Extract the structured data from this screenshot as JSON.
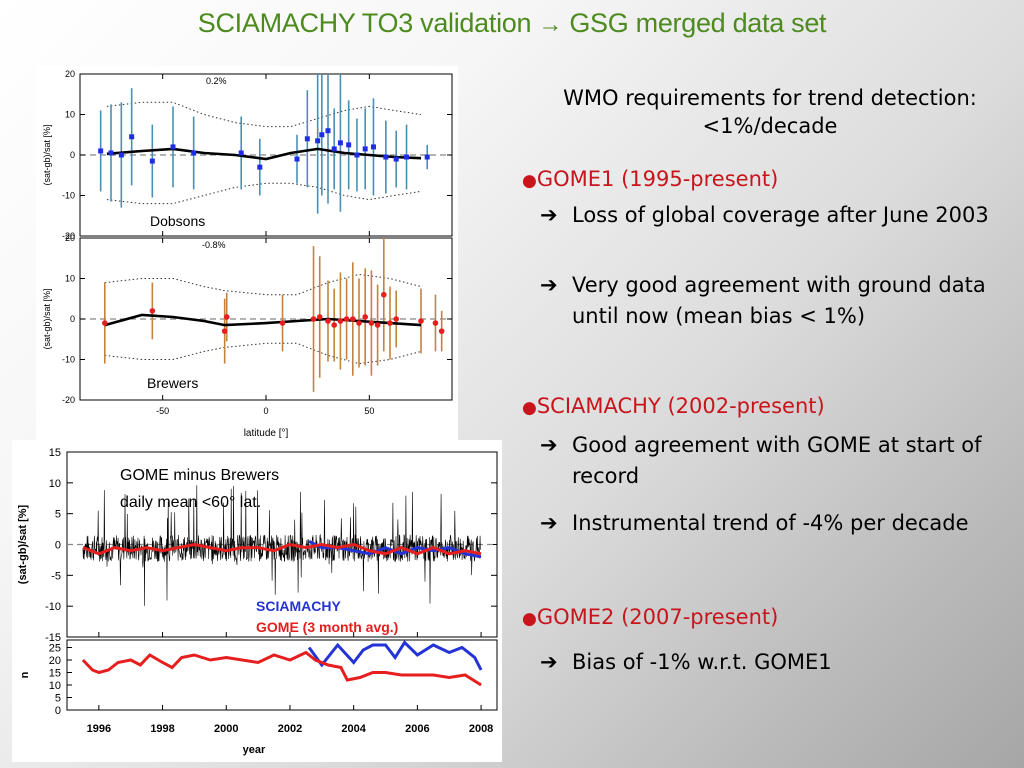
{
  "title": "SCIAMACHY TO3 validation",
  "title_arrow": "→",
  "title_tail": "GSG merged data set",
  "right": {
    "requirement": "WMO requirements for trend detection: <1%/decade",
    "arrow_glyph": "➔",
    "bullet_glyph": "●",
    "sections": [
      {
        "heading": "GOME1 (1995-present)",
        "items": [
          "Loss of global coverage after June 2003",
          "Very good agreement with ground data until now (mean bias < 1%)"
        ]
      },
      {
        "heading": "SCIAMACHY (2002-present)",
        "items": [
          "Good agreement with GOME at start of record",
          "Instrumental trend of -4% per decade"
        ]
      },
      {
        "heading": "GOME2 (2007-present)",
        "items": [
          "Bias of -1% w.r.t. GOME1"
        ]
      }
    ]
  },
  "chart_data": [
    {
      "type": "scatter",
      "panel": "Dobsons",
      "annotation": "0.2%",
      "xlabel": "",
      "ylabel": "(sat-gb)/sat [%]",
      "xlim": [
        -90,
        90
      ],
      "ylim": [
        -20,
        20
      ],
      "xticks": [
        -50,
        0,
        50
      ],
      "yticks": [
        -20,
        -10,
        0,
        10,
        20
      ],
      "colors": {
        "points": "#1f2ee6",
        "errorbars": "#4a8fb5",
        "line": "#000000"
      },
      "points": [
        {
          "x": -80,
          "y": 1,
          "e": 10
        },
        {
          "x": -75,
          "y": 0.5,
          "e": 12
        },
        {
          "x": -70,
          "y": 0,
          "e": 13
        },
        {
          "x": -65,
          "y": 4.5,
          "e": 12
        },
        {
          "x": -55,
          "y": -1.5,
          "e": 9
        },
        {
          "x": -45,
          "y": 2,
          "e": 10
        },
        {
          "x": -35,
          "y": 0.5,
          "e": 9
        },
        {
          "x": -12,
          "y": 0.5,
          "e": 9
        },
        {
          "x": -3,
          "y": -3,
          "e": 7
        },
        {
          "x": 15,
          "y": -1,
          "e": 6
        },
        {
          "x": 20,
          "y": 4,
          "e": 12
        },
        {
          "x": 25,
          "y": 3.5,
          "e": 18
        },
        {
          "x": 27,
          "y": 5,
          "e": 15
        },
        {
          "x": 30,
          "y": 6,
          "e": 18
        },
        {
          "x": 33,
          "y": 1.5,
          "e": 10
        },
        {
          "x": 36,
          "y": 3,
          "e": 17
        },
        {
          "x": 40,
          "y": 2.5,
          "e": 11
        },
        {
          "x": 44,
          "y": 0,
          "e": 9
        },
        {
          "x": 48,
          "y": 1.5,
          "e": 10
        },
        {
          "x": 52,
          "y": 2,
          "e": 12
        },
        {
          "x": 58,
          "y": -0.5,
          "e": 9
        },
        {
          "x": 63,
          "y": -1,
          "e": 7
        },
        {
          "x": 68,
          "y": -0.5,
          "e": 8
        },
        {
          "x": 78,
          "y": -0.5,
          "e": 3
        }
      ],
      "mean_line": {
        "x": [
          -77,
          -60,
          -45,
          -30,
          -15,
          0,
          12,
          25,
          38,
          50,
          62,
          75
        ],
        "y": [
          0.3,
          1,
          1.5,
          0.5,
          0,
          -1,
          0.5,
          1.5,
          0.5,
          0,
          -0.5,
          -0.8
        ]
      },
      "envelope_upper": {
        "x": [
          -77,
          -60,
          -45,
          -30,
          -15,
          0,
          12,
          25,
          38,
          50,
          62,
          75
        ],
        "y": [
          12,
          13,
          13,
          10,
          8,
          7,
          7,
          9,
          11,
          12,
          11,
          10
        ]
      },
      "envelope_lower": {
        "x": [
          -77,
          -60,
          -45,
          -30,
          -15,
          0,
          12,
          25,
          38,
          50,
          62,
          75
        ],
        "y": [
          -11,
          -12,
          -12,
          -10,
          -8,
          -7,
          -7,
          -8,
          -10,
          -11,
          -10,
          -9
        ]
      }
    },
    {
      "type": "scatter",
      "panel": "Brewers",
      "annotation": "-0.8%",
      "xlabel": "latitude [°]",
      "ylabel": "(sat-gb)/sat [%]",
      "xlim": [
        -90,
        90
      ],
      "ylim": [
        -20,
        20
      ],
      "xticks": [
        -50,
        0,
        50
      ],
      "yticks": [
        -20,
        -10,
        0,
        10,
        20
      ],
      "colors": {
        "points": "#e61e1e",
        "errorbars": "#c4823d",
        "line": "#000000"
      },
      "points": [
        {
          "x": -78,
          "y": -1,
          "e": 10
        },
        {
          "x": -55,
          "y": 2,
          "e": 7
        },
        {
          "x": -20,
          "y": -3,
          "e": 8
        },
        {
          "x": -19,
          "y": 0.5,
          "e": 6
        },
        {
          "x": 8,
          "y": -1,
          "e": 7
        },
        {
          "x": 23,
          "y": 0,
          "e": 18
        },
        {
          "x": 26,
          "y": 0.5,
          "e": 15
        },
        {
          "x": 30,
          "y": -0.5,
          "e": 10
        },
        {
          "x": 33,
          "y": -1.5,
          "e": 9
        },
        {
          "x": 36,
          "y": -0.5,
          "e": 12
        },
        {
          "x": 39,
          "y": 0,
          "e": 10
        },
        {
          "x": 42,
          "y": 0,
          "e": 14
        },
        {
          "x": 45,
          "y": -1,
          "e": 11
        },
        {
          "x": 48,
          "y": 0.5,
          "e": 12
        },
        {
          "x": 51,
          "y": -1,
          "e": 13
        },
        {
          "x": 54,
          "y": -1.5,
          "e": 10
        },
        {
          "x": 57,
          "y": 6,
          "e": 14
        },
        {
          "x": 60,
          "y": -1,
          "e": 9
        },
        {
          "x": 63,
          "y": 0,
          "e": 7
        },
        {
          "x": 75,
          "y": -0.5,
          "e": 8
        },
        {
          "x": 82,
          "y": -1,
          "e": 7
        },
        {
          "x": 85,
          "y": -3,
          "e": 5
        }
      ],
      "mean_line": {
        "x": [
          -78,
          -60,
          -45,
          -30,
          -20,
          0,
          15,
          30,
          45,
          60,
          75
        ],
        "y": [
          -1.5,
          1,
          0.5,
          -0.5,
          -1.5,
          -1,
          -0.5,
          0,
          -0.5,
          -1,
          -1.5
        ]
      },
      "envelope_upper": {
        "x": [
          -78,
          -60,
          -45,
          -30,
          -20,
          0,
          15,
          30,
          45,
          60,
          75
        ],
        "y": [
          9,
          10,
          10,
          8,
          7,
          6,
          6,
          9,
          11,
          10,
          8
        ]
      },
      "envelope_lower": {
        "x": [
          -78,
          -60,
          -45,
          -30,
          -20,
          0,
          15,
          30,
          45,
          60,
          75
        ],
        "y": [
          -9,
          -10,
          -10,
          -8,
          -7,
          -6,
          -6,
          -9,
          -11,
          -10,
          -8
        ]
      },
      "label": "Brewers"
    },
    {
      "type": "line",
      "panel": "GOME minus Brewers",
      "annotation": "GOME minus Brewers daily mean <60° lat.",
      "xlabel": "year",
      "ylabel": "(sat-gb)/sat [%]",
      "xlim": [
        1995,
        2008.5
      ],
      "ylim": [
        -15,
        15
      ],
      "xticks": [
        1996,
        1998,
        2000,
        2002,
        2004,
        2006,
        2008
      ],
      "yticks": [
        -15,
        -10,
        -5,
        0,
        5,
        10,
        15
      ],
      "series": [
        {
          "name": "SCIAMACHY",
          "color": "#2433d6",
          "x": [
            2002.6,
            2003,
            2003.5,
            2004,
            2004.5,
            2005,
            2005.5,
            2006,
            2006.5,
            2007,
            2007.5,
            2008
          ],
          "y": [
            0.5,
            -0.5,
            -0.5,
            -1,
            -1.5,
            -0.5,
            -1.5,
            -0.5,
            -1,
            -0.5,
            -1.5,
            -2
          ]
        },
        {
          "name": "GOME (3 month avg.)",
          "color": "#e61e1e",
          "x": [
            1995.5,
            1996,
            1996.5,
            1997,
            1997.5,
            1998,
            1998.5,
            1999,
            1999.5,
            2000,
            2000.5,
            2001,
            2001.5,
            2002,
            2002.5,
            2003,
            2003.5,
            2004,
            2004.5,
            2005,
            2005.5,
            2006,
            2006.5,
            2007,
            2007.5,
            2008
          ],
          "y": [
            -0.5,
            -1.5,
            -0.5,
            -1,
            -0.5,
            -1,
            -0.5,
            0,
            -0.5,
            -1,
            -0.5,
            -0.5,
            -1,
            0,
            -0.5,
            0,
            -0.5,
            0,
            -1,
            -1.5,
            -0.5,
            -1.5,
            -0.5,
            -1.5,
            -1,
            -1.5
          ]
        }
      ],
      "daily_noise": {
        "amplitude": 2.2,
        "color": "#000000"
      }
    },
    {
      "type": "line",
      "panel": "n",
      "xlabel": "year",
      "ylabel": "n",
      "xlim": [
        1995,
        2008.5
      ],
      "ylim": [
        0,
        28
      ],
      "xticks": [
        1996,
        1998,
        2000,
        2002,
        2004,
        2006,
        2008
      ],
      "xtick_labels": [
        "1996",
        "1998",
        "2000",
        "2002",
        "2004",
        "2006",
        "2008"
      ],
      "yticks": [
        0,
        5,
        10,
        15,
        20,
        25
      ],
      "series": [
        {
          "name": "SCIAMACHY",
          "color": "#2433d6",
          "x": [
            2002.6,
            2003,
            2003.5,
            2004,
            2004.3,
            2004.6,
            2005,
            2005.3,
            2005.6,
            2006,
            2006.5,
            2007,
            2007.4,
            2007.8,
            2008
          ],
          "y": [
            25,
            18,
            26,
            19,
            24,
            26,
            26,
            21,
            27,
            22,
            26,
            23,
            25,
            21,
            16
          ]
        },
        {
          "name": "GOME (3 month avg.)",
          "color": "#e61e1e",
          "x": [
            1995.5,
            1995.8,
            1996,
            1996.3,
            1996.6,
            1997,
            1997.3,
            1997.6,
            1998,
            1998.3,
            1998.6,
            1999,
            1999.5,
            2000,
            2000.5,
            2001,
            2001.5,
            2002,
            2002.5,
            2002.8,
            2003.2,
            2003.6,
            2003.8,
            2004.2,
            2004.6,
            2005,
            2005.5,
            2006,
            2006.5,
            2007,
            2007.5,
            2008
          ],
          "y": [
            20,
            16,
            15,
            16,
            19,
            20,
            18,
            22,
            19,
            17,
            21,
            22,
            20,
            21,
            20,
            19,
            22,
            20,
            23,
            20,
            18,
            17,
            12,
            13,
            15,
            15,
            14,
            14,
            14,
            13,
            14,
            10
          ]
        }
      ]
    }
  ]
}
